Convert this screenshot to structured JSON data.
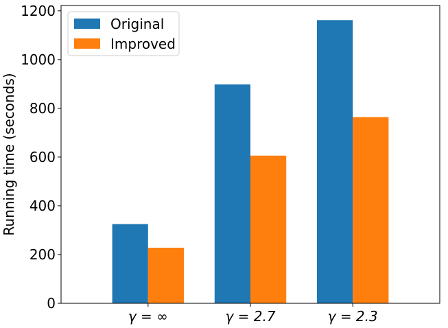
{
  "chart_data": {
    "type": "bar",
    "categories": [
      "γ = ∞",
      "γ = 2.7",
      "γ = 2.3"
    ],
    "series": [
      {
        "name": "Original",
        "color": "#1f77b4",
        "values": [
          325,
          898,
          1162
        ]
      },
      {
        "name": "Improved",
        "color": "#ff7f0e",
        "values": [
          228,
          606,
          764
        ]
      }
    ],
    "xlabel": "",
    "ylabel": "Running time (seconds)",
    "ylim": [
      0,
      1222
    ],
    "yticks": [
      0,
      200,
      400,
      600,
      800,
      1000,
      1200
    ],
    "grid": false,
    "legend_position": "top-left"
  }
}
